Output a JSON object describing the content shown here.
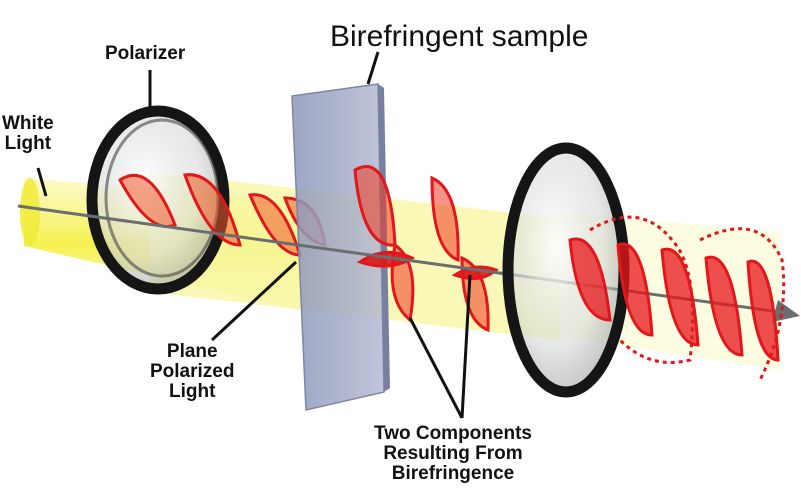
{
  "title": "Birefringent sample",
  "labels": {
    "polarizer": "Polarizer",
    "white_light": [
      "White",
      "Light"
    ],
    "plane_polarized": [
      "Plane",
      "Polarized",
      "Light"
    ],
    "two_components": [
      "Two Components",
      "Resulting From",
      "Birefringence"
    ]
  },
  "colors": {
    "beam": "#f6f36a",
    "wave": "#e2161b",
    "ring": "#151515",
    "sample": "#9ea6c4",
    "axis": "#6a6e70"
  }
}
